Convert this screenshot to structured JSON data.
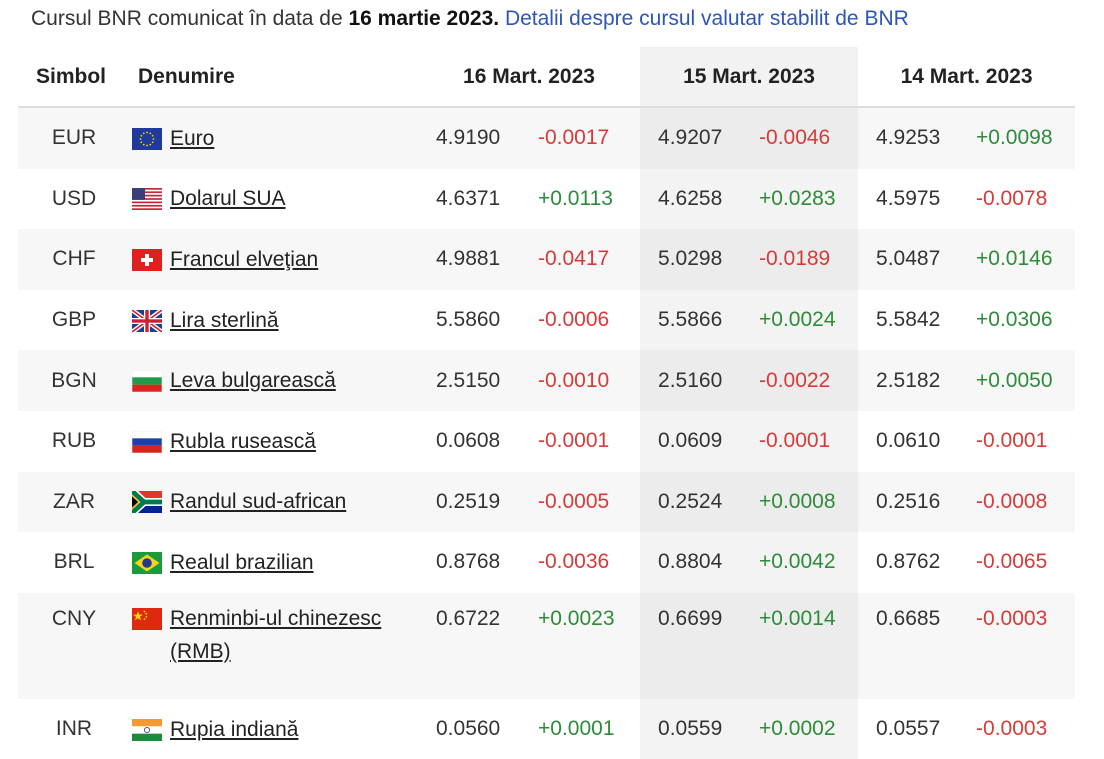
{
  "intro": {
    "prefix": "Cursul BNR comunicat în data de ",
    "date": "16 martie 2023.",
    "link": "Detalii despre cursul valutar stabilit de BNR"
  },
  "table": {
    "headers": {
      "symbol": "Simbol",
      "name": "Denumire",
      "d1": "16 Mart. 2023",
      "d2": "15 Mart. 2023",
      "d3": "14 Mart. 2023"
    },
    "rows": [
      {
        "symbol": "EUR",
        "name": "Euro",
        "flag": "eu-flag-icon",
        "d1": {
          "rate": "4.9190",
          "change": "-0.0017"
        },
        "d2": {
          "rate": "4.9207",
          "change": "-0.0046"
        },
        "d3": {
          "rate": "4.9253",
          "change": "+0.0098"
        }
      },
      {
        "symbol": "USD",
        "name": "Dolarul SUA",
        "flag": "us-flag-icon",
        "d1": {
          "rate": "4.6371",
          "change": "+0.0113"
        },
        "d2": {
          "rate": "4.6258",
          "change": "+0.0283"
        },
        "d3": {
          "rate": "4.5975",
          "change": "-0.0078"
        }
      },
      {
        "symbol": "CHF",
        "name": "Francul elveţian",
        "flag": "ch-flag-icon",
        "d1": {
          "rate": "4.9881",
          "change": "-0.0417"
        },
        "d2": {
          "rate": "5.0298",
          "change": "-0.0189"
        },
        "d3": {
          "rate": "5.0487",
          "change": "+0.0146"
        }
      },
      {
        "symbol": "GBP",
        "name": "Lira sterlină",
        "flag": "uk-flag-icon",
        "d1": {
          "rate": "5.5860",
          "change": "-0.0006"
        },
        "d2": {
          "rate": "5.5866",
          "change": "+0.0024"
        },
        "d3": {
          "rate": "5.5842",
          "change": "+0.0306"
        }
      },
      {
        "symbol": "BGN",
        "name": "Leva bulgarească",
        "flag": "bg-flag-icon",
        "d1": {
          "rate": "2.5150",
          "change": "-0.0010"
        },
        "d2": {
          "rate": "2.5160",
          "change": "-0.0022"
        },
        "d3": {
          "rate": "2.5182",
          "change": "+0.0050"
        }
      },
      {
        "symbol": "RUB",
        "name": "Rubla rusească",
        "flag": "ru-flag-icon",
        "d1": {
          "rate": "0.0608",
          "change": "-0.0001"
        },
        "d2": {
          "rate": "0.0609",
          "change": "-0.0001"
        },
        "d3": {
          "rate": "0.0610",
          "change": "-0.0001"
        }
      },
      {
        "symbol": "ZAR",
        "name": "Randul sud-african",
        "flag": "za-flag-icon",
        "d1": {
          "rate": "0.2519",
          "change": "-0.0005"
        },
        "d2": {
          "rate": "0.2524",
          "change": "+0.0008"
        },
        "d3": {
          "rate": "0.2516",
          "change": "-0.0008"
        }
      },
      {
        "symbol": "BRL",
        "name": "Realul brazilian",
        "flag": "br-flag-icon",
        "d1": {
          "rate": "0.8768",
          "change": "-0.0036"
        },
        "d2": {
          "rate": "0.8804",
          "change": "+0.0042"
        },
        "d3": {
          "rate": "0.8762",
          "change": "-0.0065"
        }
      },
      {
        "symbol": "CNY",
        "name": "Renminbi-ul chinezesc (RMB)",
        "flag": "cn-flag-icon",
        "d1": {
          "rate": "0.6722",
          "change": "+0.0023"
        },
        "d2": {
          "rate": "0.6699",
          "change": "+0.0014"
        },
        "d3": {
          "rate": "0.6685",
          "change": "-0.0003"
        }
      },
      {
        "symbol": "INR",
        "name": "Rupia indiană",
        "flag": "in-flag-icon",
        "d1": {
          "rate": "0.0560",
          "change": "+0.0001"
        },
        "d2": {
          "rate": "0.0559",
          "change": "+0.0002"
        },
        "d3": {
          "rate": "0.0557",
          "change": "-0.0003"
        }
      }
    ]
  },
  "colors": {
    "link": "#2d56b8",
    "positive": "#2e8b3a",
    "negative": "#d83a3a",
    "row_stripe": "#f7f7f7",
    "middle_column": "#ececec"
  }
}
